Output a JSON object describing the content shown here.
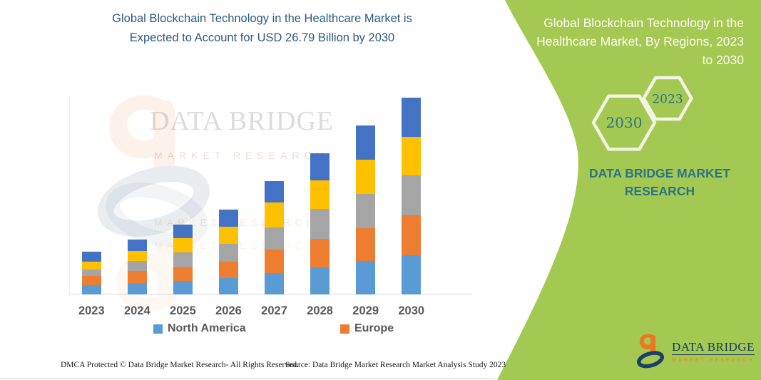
{
  "main_title": {
    "lines": [
      "Global Blockchain Technology in the Healthcare Market is",
      "Expected to Account for USD 26.79 Billion by 2030"
    ]
  },
  "panel": {
    "bg_color": "#a4c952",
    "title_lines": [
      "Global Blockchain Technology in the",
      "Healthcare Market, By Regions, 2023",
      "to 2030"
    ],
    "hexagons": [
      {
        "label": "2030"
      },
      {
        "label": "2023"
      }
    ],
    "brand_lines": [
      "DATA BRIDGE MARKET",
      "RESEARCH"
    ]
  },
  "chart_data": {
    "type": "bar",
    "stacked": true,
    "title": "Global Blockchain Technology in the Healthcare Market is Expected to Account for USD 26.79 Billion by 2030",
    "unit": "USD Billion",
    "categories": [
      "2023",
      "2024",
      "2025",
      "2026",
      "2027",
      "2028",
      "2029",
      "2030"
    ],
    "series": [
      {
        "name": "North America",
        "color": "#5B9BD5",
        "values": [
          1.26,
          1.55,
          1.84,
          2.23,
          2.91,
          3.69,
          4.56,
          5.34
        ]
      },
      {
        "name": "Europe",
        "color": "#ED7D31",
        "values": [
          1.26,
          1.65,
          1.84,
          2.23,
          3.2,
          3.88,
          4.47,
          5.44
        ]
      },
      {
        "name": "",
        "color": "#A5A5A5",
        "values": [
          0.87,
          1.36,
          2.04,
          2.43,
          3.01,
          4.08,
          4.66,
          5.44
        ]
      },
      {
        "name": "",
        "color": "#FFC000",
        "values": [
          1.07,
          1.36,
          1.94,
          2.33,
          3.4,
          3.88,
          4.66,
          5.24
        ]
      },
      {
        "name": "",
        "color": "#4472C4",
        "values": [
          1.36,
          1.55,
          1.84,
          2.33,
          2.91,
          3.69,
          4.66,
          5.33
        ]
      }
    ],
    "totals": [
      5.82,
      7.47,
      9.5,
      11.55,
      15.43,
      19.22,
      23.01,
      26.79
    ],
    "legend_position": "bottom",
    "axes": {
      "x_visible": true,
      "y_visible": false,
      "gridlines": false,
      "y_max": 26.79
    }
  },
  "legend": [
    {
      "label": "North America",
      "color": "#5B9BD5"
    },
    {
      "label": "Europe",
      "color": "#ED7D31"
    }
  ],
  "watermark": {
    "name": "DATA BRIDGE",
    "sub": "MARKET RESEARCH"
  },
  "footer": {
    "left": "DMCA Protected © Data Bridge Market Research-  All Rights Reserved.",
    "right": "Source: Data Bridge Market Research  Market Analysis Study 2023"
  },
  "footer_logo": {
    "name": "DATA BRIDGE",
    "sub": "MARKET RESEARCH"
  }
}
